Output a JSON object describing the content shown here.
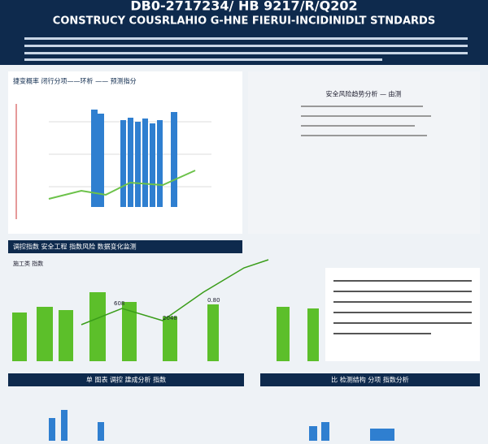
{
  "header": {
    "title": "DB0-2717234/ HB 9217/R/Q202",
    "subtitle": "CONSTRUCY COUSRLAHIO G-HNE FIERUI-INCIDINIDLT STNDARDS"
  },
  "panels": [
    {
      "title": "捷变概率 闭行分项——环析 —— 预测指分"
    },
    {
      "title": "安全风险趋势分析 — 由测"
    },
    {
      "title": "调控指数 安全工程 指数风险 数据变化监测"
    },
    {
      "title": "施工类 指数"
    },
    {
      "title": "单 图表 调控 建成分析 指数"
    },
    {
      "title": "比 检测结构 分项 指数分析"
    }
  ],
  "labels": [
    "608",
    "2048",
    "0.80"
  ]
}
